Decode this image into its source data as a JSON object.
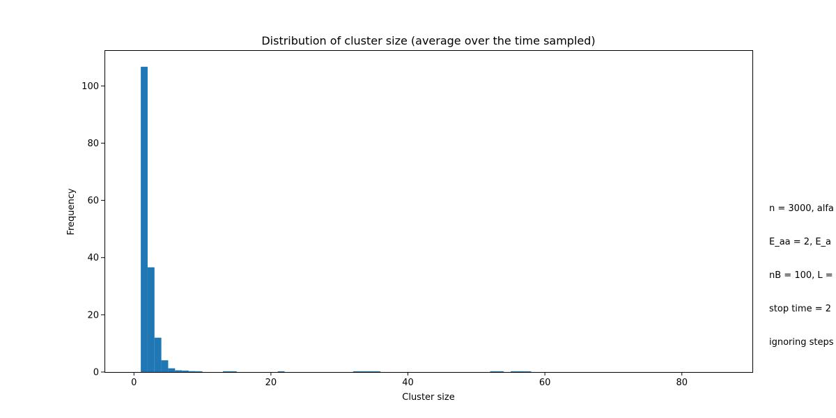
{
  "chart_data": {
    "type": "bar",
    "title": "Distribution of cluster size (average over the time sampled)",
    "xlabel": "Cluster size",
    "ylabel": "Frequency",
    "xlim": [
      -4.3,
      90.3
    ],
    "ylim": [
      0,
      112.5
    ],
    "xticks": [
      0,
      20,
      40,
      60,
      80
    ],
    "yticks": [
      0,
      20,
      40,
      60,
      80,
      100
    ],
    "grid": false,
    "bar_color": "#1f77b4",
    "bin_width": 1.0,
    "bins": [
      {
        "x0": 1,
        "x1": 2,
        "value": 106.7
      },
      {
        "x0": 2,
        "x1": 3,
        "value": 36.6
      },
      {
        "x0": 3,
        "x1": 4,
        "value": 12.0
      },
      {
        "x0": 4,
        "x1": 5,
        "value": 4.1
      },
      {
        "x0": 5,
        "x1": 6,
        "value": 1.3
      },
      {
        "x0": 6,
        "x1": 7,
        "value": 0.6
      },
      {
        "x0": 7,
        "x1": 8,
        "value": 0.5
      },
      {
        "x0": 8,
        "x1": 9,
        "value": 0.3
      },
      {
        "x0": 9,
        "x1": 10,
        "value": 0.25
      },
      {
        "x0": 13,
        "x1": 14,
        "value": 0.25
      },
      {
        "x0": 14,
        "x1": 15,
        "value": 0.25
      },
      {
        "x0": 21,
        "x1": 22,
        "value": 0.25
      },
      {
        "x0": 32,
        "x1": 33,
        "value": 0.25
      },
      {
        "x0": 33,
        "x1": 34,
        "value": 0.25
      },
      {
        "x0": 34,
        "x1": 35,
        "value": 0.25
      },
      {
        "x0": 35,
        "x1": 36,
        "value": 0.25
      },
      {
        "x0": 52,
        "x1": 53,
        "value": 0.25
      },
      {
        "x0": 53,
        "x1": 54,
        "value": 0.25
      },
      {
        "x0": 55,
        "x1": 56,
        "value": 0.25
      },
      {
        "x0": 56,
        "x1": 57,
        "value": 0.25
      },
      {
        "x0": 57,
        "x1": 58,
        "value": 0.25
      }
    ]
  },
  "side_note": {
    "lines": [
      "n = 3000, alfa",
      "E_aa = 2, E_a",
      "nB = 100, L =",
      "stop time = 2",
      "ignoring steps"
    ]
  }
}
